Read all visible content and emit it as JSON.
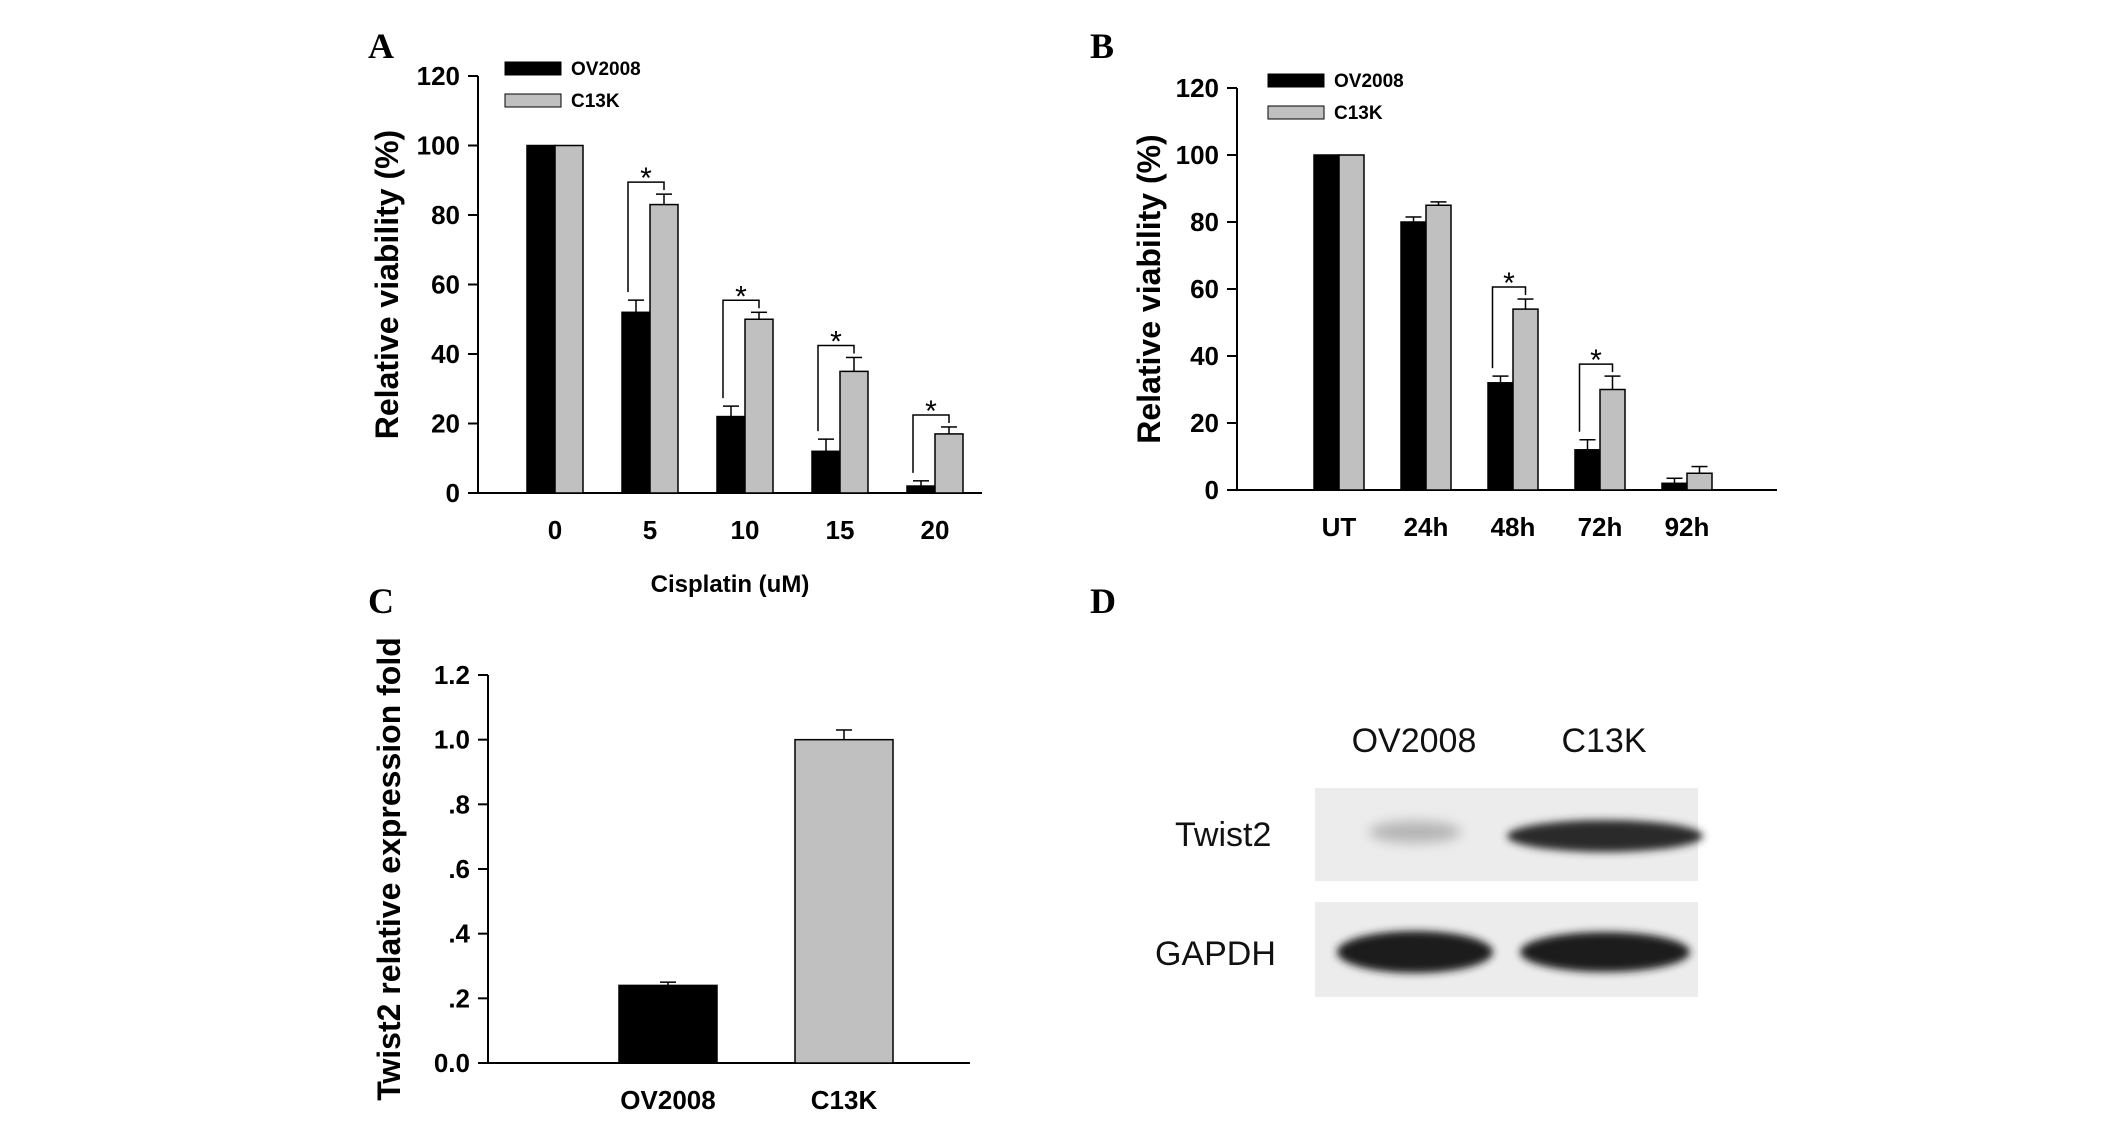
{
  "colors": {
    "ov2008": "#000000",
    "c13k": "#c0c0c0",
    "axis": "#000000"
  },
  "panels": {
    "A": "A",
    "B": "B",
    "C": "C",
    "D": "D"
  },
  "chart_data": [
    {
      "panel": "A",
      "type": "bar",
      "categories": [
        "0",
        "5",
        "10",
        "15",
        "20"
      ],
      "series": [
        {
          "name": "OV2008",
          "values": [
            100,
            52,
            22,
            12,
            2
          ],
          "errors": [
            0,
            3.5,
            3,
            3.5,
            1.5
          ]
        },
        {
          "name": "C13K",
          "values": [
            100,
            83,
            50,
            35,
            17
          ],
          "errors": [
            0,
            3,
            2,
            4,
            2
          ]
        }
      ],
      "ylim": [
        0,
        120
      ],
      "yticks": [
        "0",
        "20",
        "40",
        "60",
        "80",
        "100",
        "120"
      ],
      "ylabel": "Relative viability (%)",
      "xlabel": "Cisplatin (uM)",
      "significance": [
        1,
        2,
        3,
        4
      ],
      "significance_label": "*",
      "legend_position": "top-left"
    },
    {
      "panel": "B",
      "type": "bar",
      "categories": [
        "UT",
        "24h",
        "48h",
        "72h",
        "92h"
      ],
      "series": [
        {
          "name": "OV2008",
          "values": [
            100,
            80,
            32,
            12,
            2
          ],
          "errors": [
            0,
            1.5,
            2,
            3,
            1.5
          ]
        },
        {
          "name": "C13K",
          "values": [
            100,
            85,
            54,
            30,
            5
          ],
          "errors": [
            0,
            1,
            3,
            4,
            2
          ]
        }
      ],
      "ylim": [
        0,
        120
      ],
      "yticks": [
        "0",
        "20",
        "40",
        "60",
        "80",
        "100",
        "120"
      ],
      "ylabel": "Relative viability (%)",
      "xlabel": "",
      "significance": [
        2,
        3
      ],
      "significance_label": "*",
      "legend_position": "top-left"
    },
    {
      "panel": "C",
      "type": "bar",
      "categories": [
        "OV2008",
        "C13K"
      ],
      "series": [
        {
          "values": [
            0.24,
            1.0
          ],
          "errors": [
            0.01,
            0.03
          ]
        }
      ],
      "ylim": [
        0,
        1.2
      ],
      "yticks": [
        "0.0",
        ".2",
        ".4",
        ".6",
        ".8",
        "1.0",
        "1.2"
      ],
      "ylabel": "Twist2 relative expression fold",
      "xlabel": ""
    }
  ],
  "blot": {
    "columns": [
      "OV2008",
      "C13K"
    ],
    "rows": [
      "Twist2",
      "GAPDH"
    ]
  }
}
